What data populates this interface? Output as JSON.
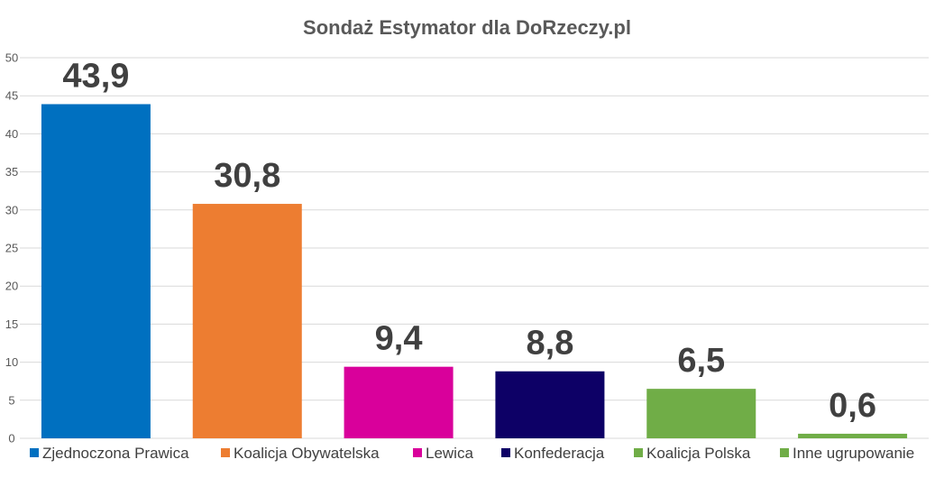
{
  "chart_data": {
    "type": "bar",
    "title": "Sondaż Estymator dla DoRzeczy.pl",
    "categories": [
      "Zjednoczona Prawica",
      "Koalicja Obywatelska",
      "Lewica",
      "Konfederacja",
      "Koalicja Polska",
      "Inne ugrupowanie"
    ],
    "values": [
      43.9,
      30.8,
      9.4,
      8.8,
      6.5,
      0.6
    ],
    "data_labels": [
      "43,9",
      "30,8",
      "9,4",
      "8,8",
      "6,5",
      "0,6"
    ],
    "colors": [
      "#0070c0",
      "#ed7d31",
      "#d9009b",
      "#0d0066",
      "#70ad47",
      "#70ad47"
    ],
    "yticks": [
      "0",
      "5",
      "10",
      "15",
      "20",
      "25",
      "30",
      "35",
      "40",
      "45",
      "50"
    ],
    "ylim": [
      0,
      50
    ],
    "xlabel": "",
    "ylabel": "",
    "grid": true,
    "legend_position": "bottom"
  }
}
